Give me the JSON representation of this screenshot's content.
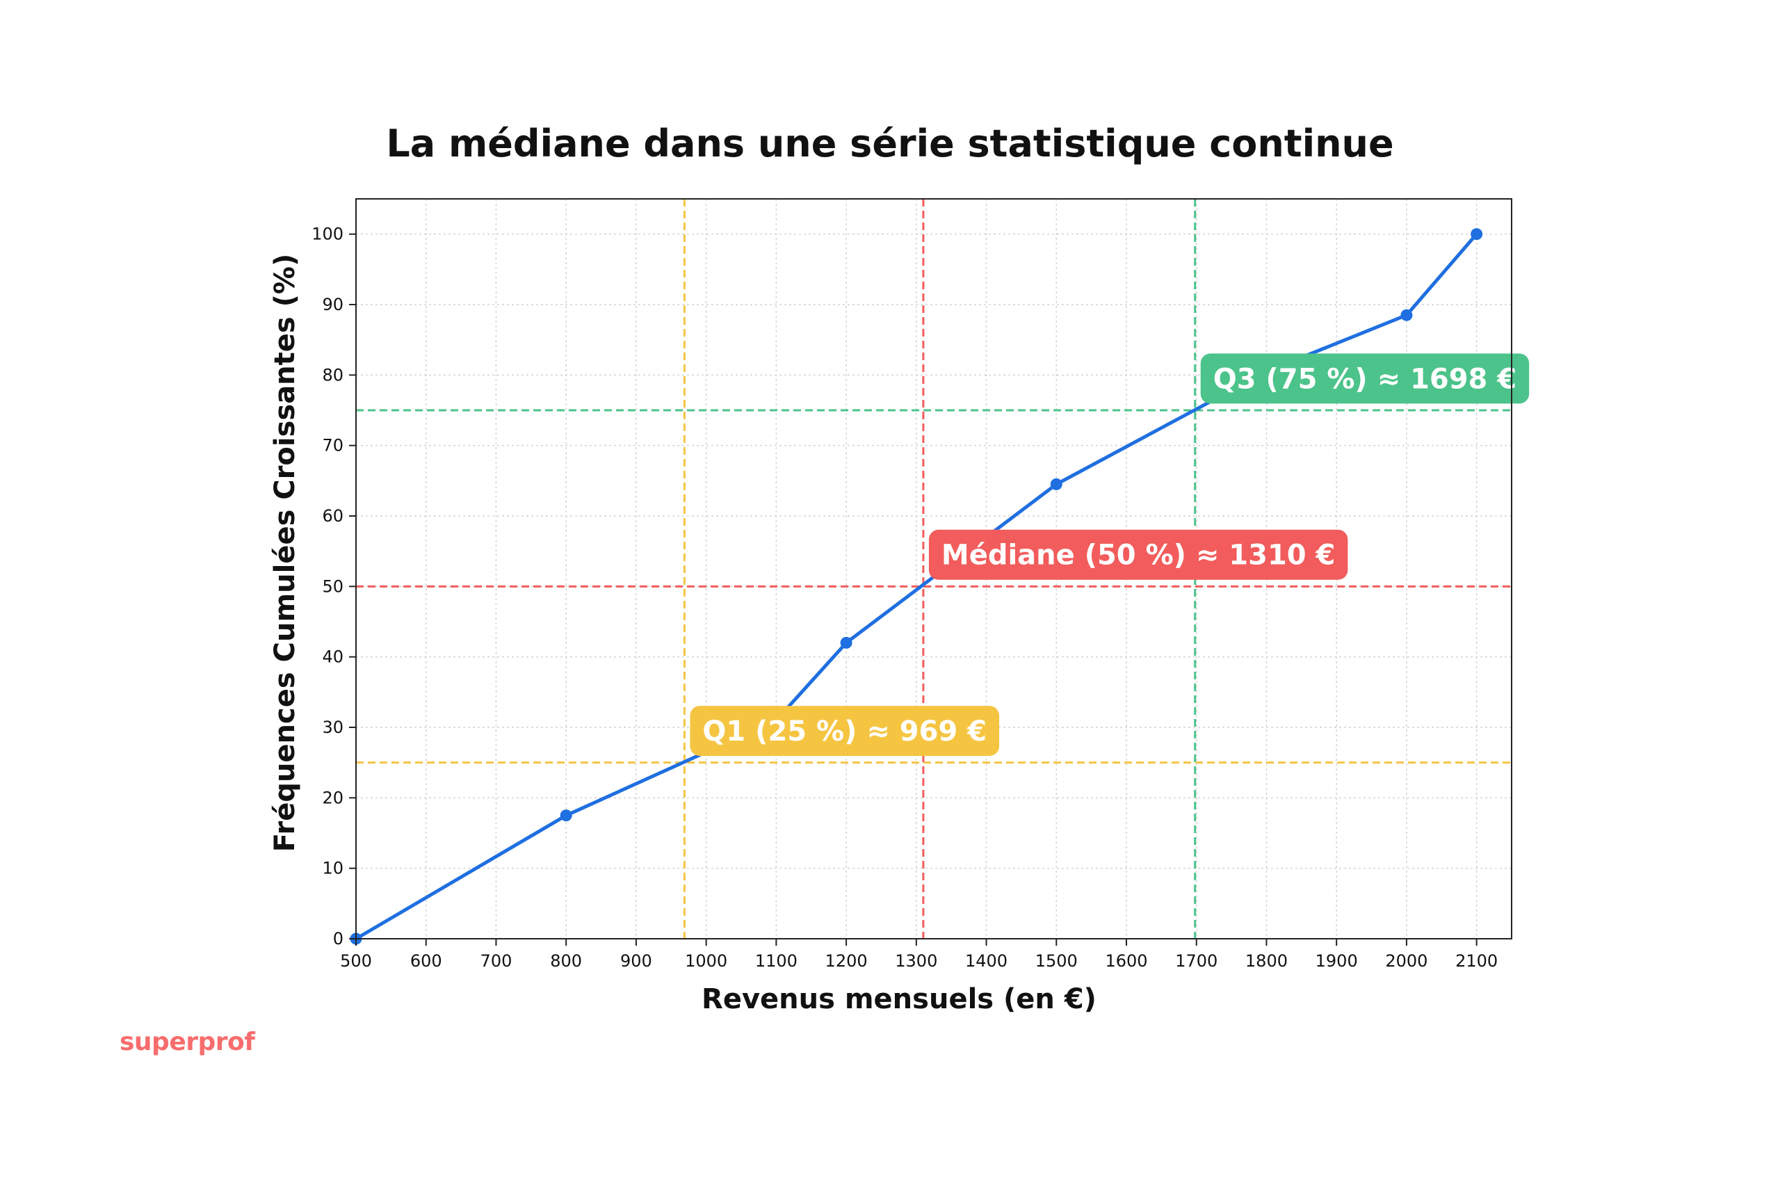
{
  "brand": {
    "name": "superprof",
    "color": "#f76d6d"
  },
  "chart_data": {
    "type": "line",
    "title": "La médiane dans une série statistique continue",
    "xlabel": "Revenus mensuels (en €)",
    "ylabel": "Fréquences Cumulées Croissantes (%)",
    "xlim": [
      500,
      2150
    ],
    "ylim": [
      0,
      105
    ],
    "xticks": [
      500,
      600,
      700,
      800,
      900,
      1000,
      1100,
      1200,
      1300,
      1400,
      1500,
      1600,
      1700,
      1800,
      1900,
      2000,
      2100
    ],
    "yticks": [
      0,
      10,
      20,
      30,
      40,
      50,
      60,
      70,
      80,
      90,
      100
    ],
    "grid": true,
    "series": [
      {
        "color": "#1f6fe0",
        "x": [
          500,
          800,
          1100,
          1200,
          1500,
          1800,
          2000,
          2100
        ],
        "y": [
          0,
          17.5,
          31,
          42,
          64.5,
          80.5,
          88.5,
          100
        ]
      }
    ],
    "reference_lines": [
      {
        "quantile": 25,
        "value": 969,
        "label": "Q1 (25 %) ≈ 969 €",
        "color": "#f5c542"
      },
      {
        "quantile": 50,
        "value": 1310,
        "label": "Médiane (50 %) ≈ 1310 €",
        "color": "#f25c5c"
      },
      {
        "quantile": 75,
        "value": 1698,
        "label": "Q3 (75 %) ≈ 1698 €",
        "color": "#4cc38a"
      }
    ]
  }
}
